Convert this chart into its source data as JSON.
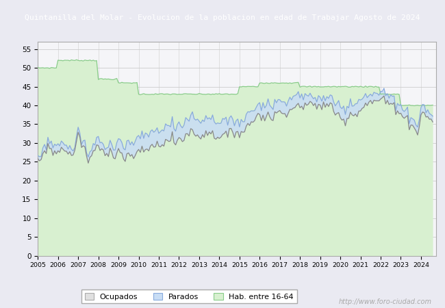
{
  "title": "Quintanilla del Molar - Evolucion de la poblacion en edad de Trabajar Agosto de 2024",
  "title_bg": "#5b7fc4",
  "title_color": "#ffffff",
  "ylim": [
    0,
    57
  ],
  "yticks": [
    0,
    5,
    10,
    15,
    20,
    25,
    30,
    35,
    40,
    45,
    50,
    55
  ],
  "watermark": "http://www.foro-ciudad.com",
  "ocup_fill": "#e0e0e0",
  "ocup_line": "#888888",
  "parad_fill": "#c8ddf5",
  "parad_line": "#88aadd",
  "hab_fill": "#d8f0d0",
  "hab_line": "#88cc88",
  "background_color": "#eaeaf2",
  "plot_bg": "#f5f5f8",
  "hab_annual": {
    "2005": 50,
    "2006": 52,
    "2007": 52,
    "2008": 47,
    "2009": 46,
    "2010": 43,
    "2011": 43,
    "2012": 43,
    "2013": 43,
    "2014": 43,
    "2015": 45,
    "2016": 46,
    "2017": 46,
    "2018": 45,
    "2019": 45,
    "2020": 45,
    "2021": 45,
    "2022": 43,
    "2023": 40,
    "2024": 40
  },
  "ocup_kx": [
    2005.0,
    2005.17,
    2005.33,
    2005.5,
    2005.67,
    2005.83,
    2006.0,
    2006.17,
    2006.33,
    2006.5,
    2006.67,
    2006.83,
    2007.0,
    2007.17,
    2007.33,
    2007.5,
    2007.67,
    2007.83,
    2008.0,
    2008.17,
    2008.33,
    2008.5,
    2008.67,
    2008.83,
    2009.0,
    2009.17,
    2009.33,
    2009.5,
    2009.67,
    2009.83,
    2010.0,
    2010.17,
    2010.33,
    2010.5,
    2010.67,
    2010.83,
    2011.0,
    2011.17,
    2011.33,
    2011.5,
    2011.67,
    2011.83,
    2012.0,
    2012.17,
    2012.33,
    2012.5,
    2012.67,
    2012.83,
    2013.0,
    2013.17,
    2013.33,
    2013.5,
    2013.67,
    2013.83,
    2014.0,
    2014.17,
    2014.33,
    2014.5,
    2014.67,
    2014.83,
    2015.0,
    2015.17,
    2015.33,
    2015.5,
    2015.67,
    2015.83,
    2016.0,
    2016.17,
    2016.33,
    2016.5,
    2016.67,
    2016.83,
    2017.0,
    2017.17,
    2017.33,
    2017.5,
    2017.67,
    2017.83,
    2018.0,
    2018.17,
    2018.33,
    2018.5,
    2018.67,
    2018.83,
    2019.0,
    2019.17,
    2019.33,
    2019.5,
    2019.67,
    2019.83,
    2020.0,
    2020.17,
    2020.33,
    2020.5,
    2020.67,
    2020.83,
    2021.0,
    2021.17,
    2021.33,
    2021.5,
    2021.67,
    2021.83,
    2022.0,
    2022.17,
    2022.33,
    2022.5,
    2022.67,
    2022.83,
    2023.0,
    2023.17,
    2023.33,
    2023.5,
    2023.67,
    2023.83,
    2024.0,
    2024.17,
    2024.33,
    2024.5,
    2024.67
  ],
  "ocup_ky": [
    25,
    26,
    28,
    29,
    28,
    27,
    28,
    29,
    28,
    27,
    27,
    28,
    32,
    30,
    28,
    25,
    27,
    28,
    29,
    28,
    27,
    28,
    28,
    27,
    28,
    27,
    26,
    27,
    26,
    27,
    27,
    28,
    28,
    29,
    29,
    29,
    30,
    30,
    30,
    31,
    31,
    30,
    31,
    31,
    32,
    33,
    33,
    32,
    32,
    32,
    33,
    33,
    32,
    32,
    32,
    32,
    32,
    32,
    33,
    33,
    33,
    33,
    34,
    35,
    36,
    37,
    38,
    37,
    37,
    37,
    37,
    38,
    38,
    38,
    39,
    39,
    39,
    40,
    40,
    40,
    40,
    40,
    40,
    40,
    40,
    40,
    40,
    40,
    39,
    38,
    37,
    36,
    37,
    38,
    38,
    38,
    39,
    40,
    40,
    41,
    41,
    41,
    42,
    41,
    41,
    40,
    40,
    39,
    38,
    37,
    36,
    35,
    34,
    33,
    37,
    38,
    37,
    36,
    35
  ],
  "parad_kx": [
    2005.0,
    2005.5,
    2006.0,
    2006.5,
    2007.0,
    2007.5,
    2008.0,
    2008.5,
    2009.0,
    2009.5,
    2010.0,
    2010.5,
    2011.0,
    2011.5,
    2012.0,
    2012.5,
    2013.0,
    2013.5,
    2014.0,
    2014.5,
    2015.0,
    2015.5,
    2016.0,
    2016.5,
    2017.0,
    2017.5,
    2018.0,
    2018.5,
    2019.0,
    2019.5,
    2020.0,
    2020.5,
    2021.0,
    2021.5,
    2022.0,
    2022.5,
    2023.0,
    2023.5,
    2024.0,
    2024.67
  ],
  "parad_ky": [
    1,
    1.5,
    2,
    1.5,
    1,
    1.5,
    2,
    2,
    3,
    3,
    4,
    4,
    4,
    4,
    4,
    4,
    4,
    4,
    4,
    3,
    3,
    3,
    3,
    3,
    3,
    3,
    3,
    2,
    2,
    2,
    3,
    3,
    3,
    2,
    2,
    2,
    2,
    2,
    2,
    1
  ]
}
